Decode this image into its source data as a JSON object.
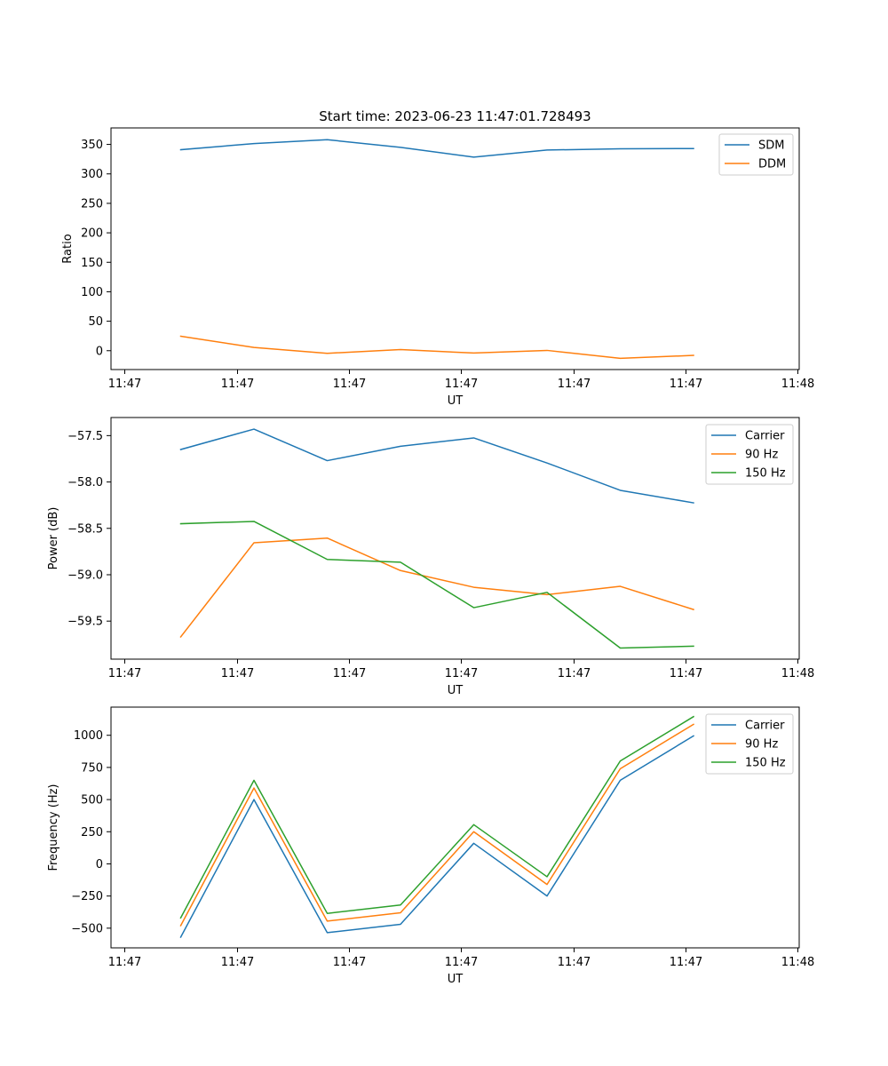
{
  "figure": {
    "title": "Start time: 2023-06-23 11:47:01.728493"
  },
  "chart_data": [
    {
      "type": "line",
      "title": "Start time: 2023-06-23 11:47:01.728493",
      "xlabel": "UT",
      "ylabel": "Ratio",
      "xticks": [
        "11:47",
        "11:47",
        "11:47",
        "11:47",
        "11:47",
        "11:47",
        "11:48"
      ],
      "yticks": [
        "0",
        "50",
        "100",
        "150",
        "200",
        "250",
        "300",
        "350"
      ],
      "ylim": [
        -32,
        378
      ],
      "series": [
        {
          "name": "SDM",
          "color": "#1f77b4",
          "values": [
            341,
            351.5,
            358,
            345,
            328.5,
            340.5,
            342.5,
            343
          ]
        },
        {
          "name": "DDM",
          "color": "#ff7f0e",
          "values": [
            24.5,
            5.5,
            -4.5,
            2,
            -4,
            0.5,
            -13,
            -8
          ]
        }
      ],
      "legend": "top-right",
      "grid": false
    },
    {
      "type": "line",
      "title": "",
      "xlabel": "UT",
      "ylabel": "Power (dB)",
      "xticks": [
        "11:47",
        "11:47",
        "11:47",
        "11:47",
        "11:47",
        "11:47",
        "11:48"
      ],
      "yticks": [
        "-59.5",
        "-59.0",
        "-58.5",
        "-58.0",
        "-57.5"
      ],
      "ylim": [
        -59.91,
        -57.305
      ],
      "series": [
        {
          "name": "Carrier",
          "color": "#1f77b4",
          "values": [
            -57.65,
            -57.43,
            -57.77,
            -57.615,
            -57.525,
            -57.795,
            -58.09,
            -58.225
          ]
        },
        {
          "name": "90 Hz",
          "color": "#ff7f0e",
          "values": [
            -59.67,
            -58.655,
            -58.605,
            -58.955,
            -59.135,
            -59.215,
            -59.125,
            -59.375
          ]
        },
        {
          "name": "150 Hz",
          "color": "#2ca02c",
          "values": [
            -58.45,
            -58.425,
            -58.835,
            -58.865,
            -59.355,
            -59.19,
            -59.79,
            -59.77
          ]
        }
      ],
      "legend": "top-right",
      "grid": false
    },
    {
      "type": "line",
      "title": "",
      "xlabel": "UT",
      "ylabel": "Frequency (Hz)",
      "xticks": [
        "11:47",
        "11:47",
        "11:47",
        "11:47",
        "11:47",
        "11:47",
        "11:48"
      ],
      "yticks": [
        "-500",
        "-250",
        "0",
        "250",
        "500",
        "750",
        "1000"
      ],
      "ylim": [
        -653,
        1219
      ],
      "series": [
        {
          "name": "Carrier",
          "color": "#1f77b4",
          "values": [
            -570,
            500,
            -535,
            -470,
            160,
            -250,
            650,
            995
          ]
        },
        {
          "name": "90 Hz",
          "color": "#ff7f0e",
          "values": [
            -480,
            590,
            -445,
            -380,
            250,
            -160,
            740,
            1085
          ]
        },
        {
          "name": "150 Hz",
          "color": "#2ca02c",
          "values": [
            -420,
            650,
            -385,
            -320,
            305,
            -100,
            800,
            1145
          ]
        }
      ],
      "legend": "top-right",
      "grid": false
    }
  ]
}
